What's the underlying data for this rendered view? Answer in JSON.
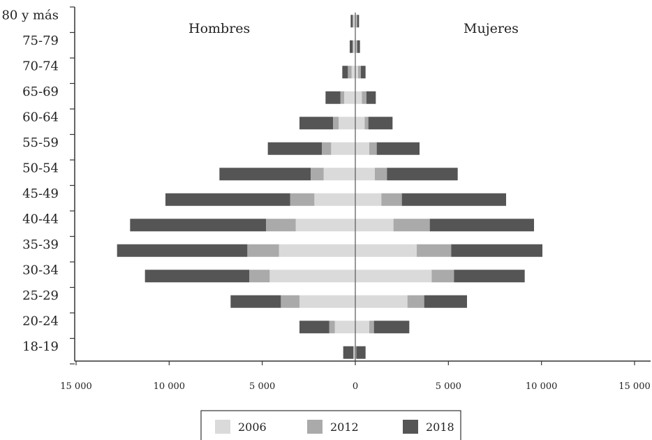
{
  "chart_data": {
    "type": "bar",
    "orientation": "horizontal-pyramid",
    "categories": [
      "80 y más",
      "75-79",
      "70-74",
      "65-69",
      "60-64",
      "55-59",
      "50-54",
      "45-49",
      "40-44",
      "35-39",
      "30-34",
      "25-29",
      "20-24",
      "18-19"
    ],
    "left_label": "Hombres",
    "right_label": "Mujeres",
    "x_ticks": [
      {
        "value": -15000,
        "label": "15 000"
      },
      {
        "value": -10000,
        "label": "10 000"
      },
      {
        "value": -5000,
        "label": "5 000"
      },
      {
        "value": 0,
        "label": "0"
      },
      {
        "value": 5000,
        "label": "5 000"
      },
      {
        "value": 10000,
        "label": "10 000"
      },
      {
        "value": 15000,
        "label": "15 000"
      }
    ],
    "xlim": [
      -15000,
      15000
    ],
    "grid": false,
    "legend_position": "bottom",
    "series": [
      {
        "name": "2006",
        "color": "#dadada",
        "hombres": [
          100,
          100,
          200,
          600,
          900,
          1300,
          1700,
          2200,
          3200,
          4100,
          4600,
          3000,
          1100,
          100
        ],
        "mujeres": [
          50,
          50,
          150,
          350,
          500,
          750,
          1050,
          1400,
          2050,
          3300,
          4100,
          2800,
          750,
          50
        ]
      },
      {
        "name": "2012",
        "color": "#aaaaaa",
        "hombres": [
          50,
          50,
          200,
          200,
          300,
          500,
          700,
          1300,
          1600,
          1700,
          1100,
          1000,
          300,
          0
        ],
        "mujeres": [
          50,
          50,
          150,
          250,
          200,
          400,
          650,
          1100,
          1950,
          1850,
          1200,
          900,
          250,
          0
        ]
      },
      {
        "name": "2018",
        "color": "#555555",
        "hombres": [
          100,
          150,
          300,
          800,
          1800,
          2900,
          4900,
          6700,
          7300,
          7000,
          5600,
          2700,
          1600,
          550
        ],
        "mujeres": [
          100,
          150,
          250,
          500,
          1300,
          2300,
          3800,
          5600,
          5600,
          4900,
          3800,
          2300,
          1900,
          500
        ]
      }
    ]
  }
}
